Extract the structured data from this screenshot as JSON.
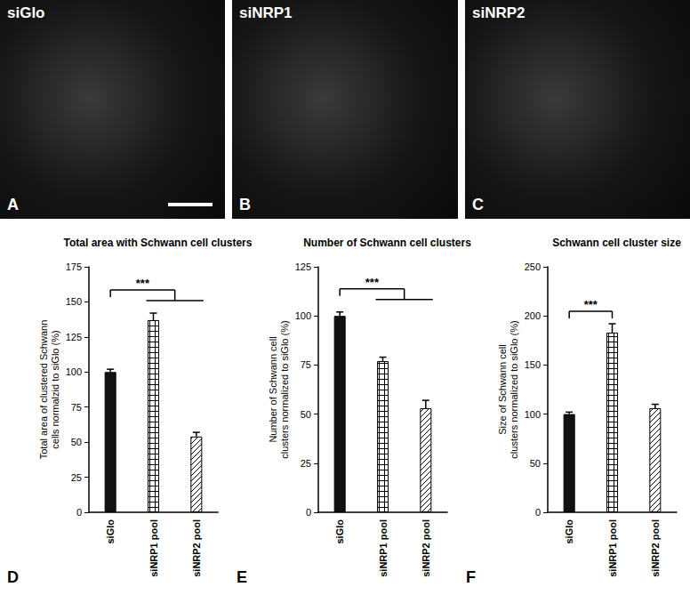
{
  "chart_data": [
    {
      "type": "bar",
      "panel": "D",
      "title": "Total area with Schwann cell clusters",
      "y_label": "Total area of clustered Schwann cells normalzid to siGlo (%)",
      "categories": [
        "siGlo",
        "siNRP1 pool",
        "siNRP2 pool"
      ],
      "values": [
        100,
        137,
        54
      ],
      "errors": [
        2,
        5,
        3
      ],
      "colors": [
        "#111111",
        "#ffffff",
        "#ffffff"
      ],
      "ylim": [
        0,
        175
      ],
      "yticks": [
        0,
        25,
        50,
        75,
        100,
        125,
        150,
        175
      ],
      "grid": false,
      "annotations": [
        {
          "text": "***",
          "from": "siGlo",
          "to": [
            "siNRP1 pool",
            "siNRP2 pool"
          ]
        }
      ]
    },
    {
      "type": "bar",
      "panel": "E",
      "title": "Number of Schwann cell clusters",
      "y_label": "Number of Schwann cell clusters normalized to siGlo (%)",
      "categories": [
        "siGlo",
        "siNRP1 pool",
        "siNRP2 pool"
      ],
      "values": [
        100,
        77,
        53
      ],
      "errors": [
        2,
        2,
        4
      ],
      "colors": [
        "#111111",
        "#ffffff",
        "#ffffff"
      ],
      "ylim": [
        0,
        125
      ],
      "yticks": [
        0,
        25,
        50,
        75,
        100,
        125
      ],
      "grid": false,
      "annotations": [
        {
          "text": "***",
          "from": "siGlo",
          "to": [
            "siNRP1 pool",
            "siNRP2 pool"
          ]
        }
      ]
    },
    {
      "type": "bar",
      "panel": "F",
      "title": "Schwann cell cluster size",
      "y_label": "Size of Schwann cell clusters normalized to siGlo (%)",
      "categories": [
        "siGlo",
        "siNRP1 pool",
        "siNRP2 pool"
      ],
      "values": [
        100,
        183,
        106
      ],
      "errors": [
        2,
        9,
        4
      ],
      "colors": [
        "#111111",
        "#ffffff",
        "#ffffff"
      ],
      "ylim": [
        0,
        250
      ],
      "yticks": [
        0,
        50,
        100,
        150,
        200,
        250
      ],
      "grid": false,
      "annotations": [
        {
          "text": "***",
          "from": "siGlo",
          "to": [
            "siNRP1 pool"
          ]
        }
      ]
    }
  ],
  "image_panels": [
    {
      "label": "siGlo",
      "panel": "A"
    },
    {
      "label": "siNRP1",
      "panel": "B"
    },
    {
      "label": "siNRP2",
      "panel": "C"
    }
  ]
}
